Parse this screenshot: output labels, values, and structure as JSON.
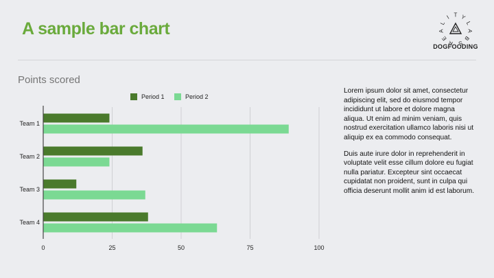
{
  "slide": {
    "title": "A sample bar chart",
    "logo_text": "DOGFOODING",
    "logo_ring_letters": [
      "R",
      "E",
      "A",
      "L",
      "I",
      "T",
      "Y",
      "L",
      "A",
      "B",
      "S"
    ],
    "paragraphs": [
      "Lorem ipsum dolor sit amet, consectetur adipiscing elit, sed do eiusmod tempor incididunt ut labore et dolore magna aliqua. Ut enim ad minim veniam, quis nostrud exercitation ullamco laboris nisi ut aliquip ex ea commodo consequat.",
      "Duis aute irure dolor in reprehenderit in voluptate velit esse cillum dolore eu fugiat nulla pariatur. Excepteur sint occaecat cupidatat non proident, sunt in culpa qui officia deserunt mollit anim id est laborum."
    ]
  },
  "chart_data": {
    "type": "bar",
    "orientation": "horizontal",
    "title": "Points scored",
    "categories": [
      "Team 1",
      "Team 2",
      "Team 3",
      "Team 4"
    ],
    "series": [
      {
        "name": "Period 1",
        "color": "#4a7a2c",
        "values": [
          24,
          36,
          12,
          38
        ]
      },
      {
        "name": "Period 2",
        "color": "#7bd993",
        "values": [
          89,
          24,
          37,
          63
        ]
      }
    ],
    "xlim": [
      0,
      100
    ],
    "xticks": [
      0,
      25,
      50,
      75,
      100
    ],
    "grid": true,
    "legend": "top"
  }
}
